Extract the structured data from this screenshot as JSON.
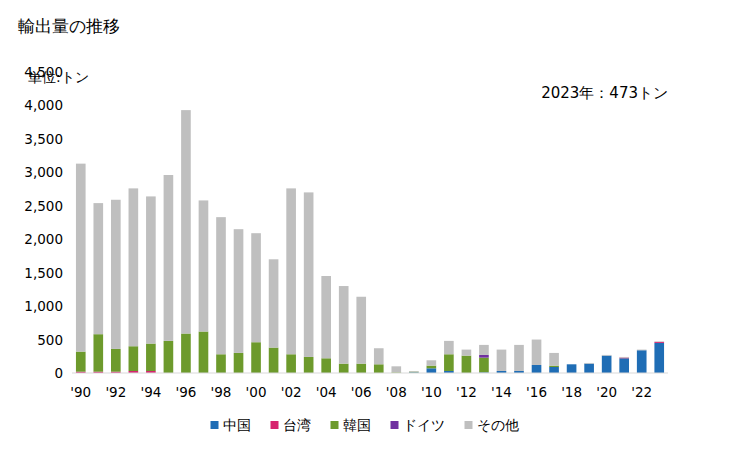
{
  "chart_data": {
    "type": "bar",
    "title": "輸出量の推移",
    "y_label": "単位:トン",
    "annotations": [
      "2023年：473トン"
    ],
    "stacked": true,
    "grid": false,
    "legend": "bottom",
    "categories": [
      "'90",
      null,
      "'92",
      null,
      "'94",
      null,
      "'96",
      null,
      "'98",
      null,
      "'00",
      null,
      "'02",
      null,
      "'04",
      null,
      "'06",
      null,
      "'08",
      null,
      "'10",
      null,
      "'12",
      null,
      "'14",
      null,
      "'16",
      null,
      "'18",
      null,
      "'20",
      null,
      "'22",
      null
    ],
    "ylim": [
      0,
      4500
    ],
    "yticks": [
      0,
      500,
      {
        "value": 1000,
        "label": "1,000"
      },
      {
        "value": 1500,
        "label": "1,500"
      },
      {
        "value": 2000,
        "label": "2,000"
      },
      {
        "value": 2500,
        "label": "2,500"
      },
      {
        "value": 3000,
        "label": "3,000"
      },
      {
        "value": 3500,
        "label": "3,500"
      },
      {
        "value": 4000,
        "label": "4,000"
      },
      {
        "value": 4500,
        "label": "4,500"
      }
    ],
    "series": [
      {
        "name": "中国",
        "color": "#1f6db5",
        "values": [
          0,
          0,
          0,
          0,
          0,
          0,
          0,
          0,
          0,
          0,
          0,
          0,
          0,
          0,
          0,
          0,
          0,
          0,
          0,
          10,
          70,
          30,
          0,
          10,
          30,
          30,
          120,
          90,
          130,
          140,
          260,
          220,
          340,
          450
        ]
      },
      {
        "name": "台湾",
        "color": "#d6246e",
        "values": [
          20,
          20,
          20,
          30,
          30,
          0,
          0,
          0,
          0,
          0,
          0,
          0,
          0,
          0,
          0,
          0,
          0,
          0,
          0,
          0,
          0,
          0,
          0,
          0,
          0,
          0,
          0,
          0,
          0,
          0,
          0,
          10,
          0,
          15
        ]
      },
      {
        "name": "韓国",
        "color": "#6d9a2c",
        "values": [
          300,
          560,
          340,
          370,
          410,
          480,
          590,
          620,
          280,
          300,
          460,
          380,
          280,
          240,
          220,
          140,
          140,
          130,
          10,
          10,
          40,
          250,
          260,
          220,
          0,
          0,
          0,
          20,
          0,
          0,
          0,
          0,
          0,
          0
        ]
      },
      {
        "name": "ドイツ",
        "color": "#7030a0",
        "values": [
          0,
          0,
          0,
          0,
          0,
          0,
          0,
          0,
          0,
          0,
          0,
          0,
          0,
          0,
          0,
          0,
          0,
          0,
          0,
          0,
          0,
          0,
          0,
          40,
          0,
          0,
          0,
          0,
          0,
          0,
          0,
          0,
          0,
          0
        ]
      },
      {
        "name": "その他",
        "color": "#bfbfbf",
        "values": [
          2810,
          1960,
          2230,
          2360,
          2200,
          2480,
          3340,
          1960,
          2050,
          1850,
          1630,
          1320,
          2480,
          2460,
          1230,
          1160,
          1000,
          240,
          90,
          10,
          80,
          200,
          90,
          150,
          320,
          390,
          380,
          190,
          0,
          10,
          10,
          10,
          10,
          8
        ]
      }
    ]
  }
}
